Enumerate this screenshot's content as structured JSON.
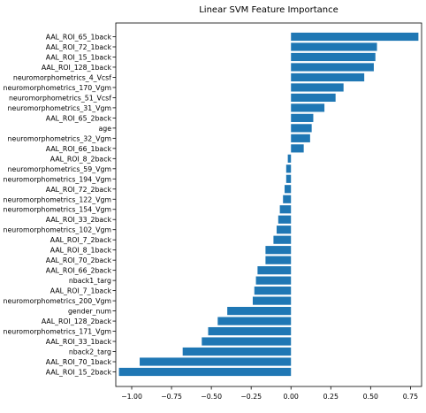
{
  "chart_data": {
    "type": "bar",
    "orientation": "horizontal",
    "title": "Linear SVM Feature Importance",
    "xlabel": "",
    "ylabel": "",
    "xlim": [
      -1.1,
      0.82
    ],
    "xticks": [
      -1.0,
      -0.75,
      -0.5,
      -0.25,
      0.0,
      0.25,
      0.5,
      0.75
    ],
    "xtick_labels": [
      "−1.00",
      "−0.75",
      "−0.50",
      "−0.25",
      "0.00",
      "0.25",
      "0.50",
      "0.75"
    ],
    "grid": false,
    "bar_color": "#1f77b4",
    "categories": [
      "AAL_ROI_65_1back",
      "AAL_ROI_72_1back",
      "AAL_ROI_15_1back",
      "AAL_ROI_128_1back",
      "neuromorphometrics_4_Vcsf",
      "neuromorphometrics_170_Vgm",
      "neuromorphometrics_51_Vcsf",
      "neuromorphometrics_31_Vgm",
      "AAL_ROI_65_2back",
      "age",
      "neuromorphometrics_32_Vgm",
      "AAL_ROI_66_1back",
      "AAL_ROI_8_2back",
      "neuromorphometrics_59_Vgm",
      "neuromorphometrics_194_Vgm",
      "AAL_ROI_72_2back",
      "neuromorphometrics_122_Vgm",
      "neuromorphometrics_154_Vgm",
      "AAL_ROI_33_2back",
      "neuromorphometrics_102_Vgm",
      "AAL_ROI_7_2back",
      "AAL_ROI_8_1back",
      "AAL_ROI_70_2back",
      "AAL_ROI_66_2back",
      "nback1_targ",
      "AAL_ROI_7_1back",
      "neuromorphometrics_200_Vgm",
      "gender_num",
      "AAL_ROI_128_2back",
      "neuromorphometrics_171_Vgm",
      "AAL_ROI_33_1back",
      "nback2_targ",
      "AAL_ROI_70_1back",
      "AAL_ROI_15_2back"
    ],
    "values": [
      0.8,
      0.54,
      0.53,
      0.52,
      0.46,
      0.33,
      0.28,
      0.21,
      0.14,
      0.13,
      0.12,
      0.08,
      -0.02,
      -0.03,
      -0.03,
      -0.04,
      -0.05,
      -0.07,
      -0.08,
      -0.09,
      -0.11,
      -0.16,
      -0.16,
      -0.21,
      -0.22,
      -0.23,
      -0.24,
      -0.4,
      -0.46,
      -0.52,
      -0.56,
      -0.68,
      -0.95,
      -1.08
    ]
  }
}
